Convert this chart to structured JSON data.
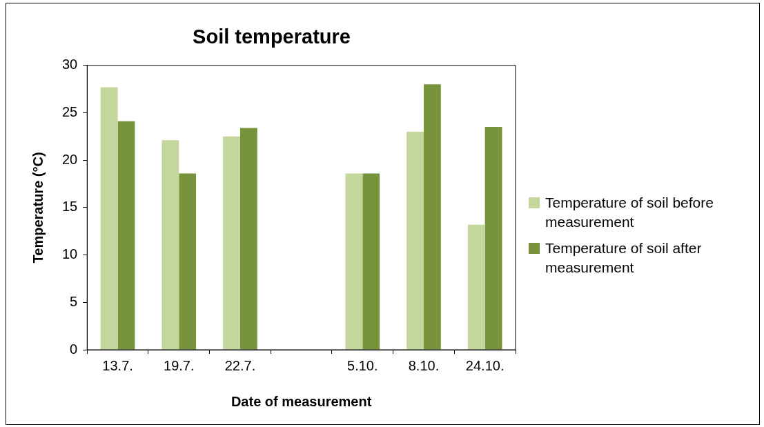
{
  "chart_data": {
    "type": "bar",
    "title": "Soil temperature",
    "xlabel": "Date of measurement",
    "ylabel": "Temperature (°C)",
    "categories": [
      "13.7.",
      "19.7.",
      "22.7.",
      null,
      "5.10.",
      "8.10.",
      "24.10."
    ],
    "series": [
      {
        "name": "Temperature of soil before measurement",
        "color": "#c3d69b",
        "values": [
          27.7,
          22.1,
          22.5,
          null,
          18.6,
          23.0,
          13.2
        ]
      },
      {
        "name": "Temperature of soil after measurement",
        "color": "#77933c",
        "values": [
          24.1,
          18.6,
          23.4,
          null,
          18.6,
          28.0,
          23.5
        ]
      }
    ],
    "ylim": [
      0,
      30
    ],
    "yticks": [
      0,
      5,
      10,
      15,
      20,
      25,
      30
    ],
    "legend": "right"
  }
}
